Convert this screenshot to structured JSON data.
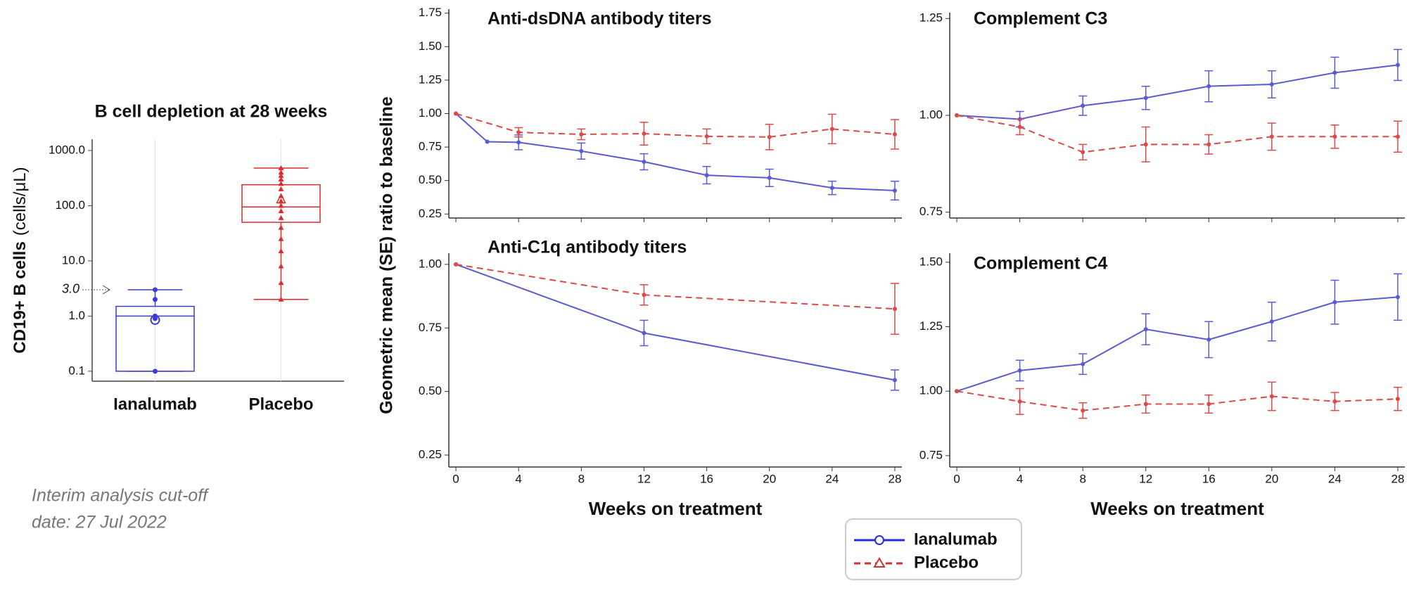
{
  "chart_data": [
    {
      "type": "box",
      "title": "B cell depletion at 28 weeks",
      "ylabel": "CD19+ B cells",
      "ylabel_unit": "(cells/μL)",
      "categories": [
        "Ianalumab",
        "Placebo"
      ],
      "colors": [
        "#3a3ad8",
        "#e02a2a"
      ],
      "yscale": "log",
      "grid": true,
      "ylim": [
        0.066,
        1600
      ],
      "yticks": [
        0.1,
        {
          "value": 1,
          "label": "1.0"
        },
        {
          "value": 10,
          "label": "10.0"
        },
        {
          "value": 100,
          "label": "100.0"
        },
        {
          "value": 1000,
          "label": "1000.0"
        }
      ],
      "boxes": [
        {
          "min": 0.1,
          "q1": 0.1,
          "median": 1.0,
          "q3": 1.5,
          "max": 3.0,
          "mean": 0.85,
          "points": [
            3.0,
            2.0,
            1.0,
            0.9,
            0.1
          ]
        },
        {
          "min": 2.0,
          "q1": 50,
          "median": 95,
          "q3": 240,
          "max": 480,
          "mean": 130,
          "points": [
            480,
            400,
            350,
            300,
            250,
            200,
            150,
            120,
            100,
            80,
            60,
            40,
            25,
            15,
            8,
            4,
            2
          ]
        }
      ],
      "annotation": {
        "label": "3.0",
        "value": 3.0
      }
    },
    {
      "type": "line",
      "title": "Anti-dsDNA antibody titers",
      "ylabel": "Geometric mean (SE) ratio to baseline",
      "xlim": [
        -0.45,
        28.45
      ],
      "xticks": [
        0,
        4,
        8,
        12,
        16,
        20,
        24,
        28
      ],
      "xticklabels": false,
      "ylim": [
        0.22,
        1.78
      ],
      "yticks": [
        0.25,
        {
          "value": 0.5,
          "label": "0.50"
        },
        0.75,
        {
          "value": 1,
          "label": "1.00"
        },
        1.25,
        {
          "value": 1.5,
          "label": "1.50"
        },
        1.75
      ],
      "series": [
        {
          "name": "Ianalumab",
          "color": "#5a5ad6",
          "legend_color": "#2a2ae0",
          "marker": "circle",
          "dash": false,
          "x": [
            0,
            2,
            4,
            8,
            12,
            16,
            20,
            24,
            28
          ],
          "values": [
            1.0,
            0.79,
            0.785,
            0.72,
            0.64,
            0.54,
            0.52,
            0.445,
            0.425
          ],
          "errors": [
            null,
            null,
            0.055,
            0.06,
            0.06,
            0.065,
            0.065,
            0.05,
            0.07
          ]
        },
        {
          "name": "Placebo",
          "color": "#e04848",
          "legend_color": "#d03030",
          "marker": "triangle",
          "dash": true,
          "x": [
            0,
            4,
            8,
            12,
            16,
            20,
            24,
            28
          ],
          "values": [
            1.0,
            0.86,
            0.845,
            0.85,
            0.83,
            0.825,
            0.885,
            0.845
          ],
          "errors": [
            null,
            0.035,
            0.04,
            0.085,
            0.055,
            0.095,
            0.11,
            0.11
          ]
        }
      ]
    },
    {
      "type": "line",
      "title": "Anti-C1q antibody titers",
      "xlabel": "Weeks on treatment",
      "xlim": [
        -0.45,
        28.45
      ],
      "xticks": [
        0,
        4,
        8,
        12,
        16,
        20,
        24,
        28
      ],
      "xticklabels": true,
      "ylim": [
        0.203,
        1.044
      ],
      "yticks": [
        0.25,
        {
          "value": 0.5,
          "label": "0.50"
        },
        0.75,
        {
          "value": 1,
          "label": "1.00"
        }
      ],
      "series": [
        {
          "color": "#5a5ad6",
          "dash": false,
          "x": [
            0,
            12,
            28
          ],
          "values": [
            1.0,
            0.73,
            0.545
          ],
          "errors": [
            null,
            0.05,
            0.04
          ]
        },
        {
          "color": "#e04848",
          "dash": true,
          "x": [
            0,
            12,
            28
          ],
          "values": [
            1.0,
            0.88,
            0.825
          ],
          "errors": [
            null,
            0.04,
            0.1
          ]
        }
      ]
    },
    {
      "type": "line",
      "title": "Complement C3",
      "xlim": [
        -0.45,
        28.45
      ],
      "xticks": [
        0,
        4,
        8,
        12,
        16,
        20,
        24,
        28
      ],
      "xticklabels": false,
      "ylim": [
        0.735,
        1.265
      ],
      "yticks": [
        0.75,
        {
          "value": 1,
          "label": "1.00"
        },
        1.25
      ],
      "series": [
        {
          "color": "#5a5ad6",
          "dash": false,
          "x": [
            0,
            4,
            8,
            12,
            16,
            20,
            24,
            28
          ],
          "values": [
            1.0,
            0.99,
            1.025,
            1.045,
            1.075,
            1.08,
            1.11,
            1.13
          ],
          "errors": [
            null,
            0.02,
            0.025,
            0.03,
            0.04,
            0.035,
            0.04,
            0.04
          ]
        },
        {
          "color": "#e04848",
          "dash": true,
          "x": [
            0,
            4,
            8,
            12,
            16,
            20,
            24,
            28
          ],
          "values": [
            1.0,
            0.97,
            0.905,
            0.925,
            0.925,
            0.945,
            0.945,
            0.945
          ],
          "errors": [
            null,
            0.02,
            0.02,
            0.045,
            0.025,
            0.035,
            0.03,
            0.04
          ]
        }
      ]
    },
    {
      "type": "line",
      "title": "Complement C4",
      "xlabel": "Weeks on treatment",
      "xlim": [
        -0.45,
        28.45
      ],
      "xticks": [
        0,
        4,
        8,
        12,
        16,
        20,
        24,
        28
      ],
      "xticklabels": true,
      "ylim": [
        0.706,
        1.535
      ],
      "yticks": [
        0.75,
        {
          "value": 1,
          "label": "1.00"
        },
        1.25,
        {
          "value": 1.5,
          "label": "1.50"
        }
      ],
      "series": [
        {
          "color": "#5a5ad6",
          "dash": false,
          "x": [
            0,
            4,
            8,
            12,
            16,
            20,
            24,
            28
          ],
          "values": [
            1.0,
            1.08,
            1.105,
            1.24,
            1.2,
            1.27,
            1.345,
            1.365
          ],
          "errors": [
            null,
            0.04,
            0.04,
            0.06,
            0.07,
            0.075,
            0.085,
            0.09
          ]
        },
        {
          "color": "#e04848",
          "dash": true,
          "x": [
            0,
            4,
            8,
            12,
            16,
            20,
            24,
            28
          ],
          "values": [
            1.0,
            0.96,
            0.925,
            0.95,
            0.95,
            0.98,
            0.96,
            0.97
          ],
          "errors": [
            null,
            0.05,
            0.03,
            0.035,
            0.035,
            0.055,
            0.035,
            0.045
          ]
        }
      ]
    }
  ],
  "note": [
    "Interim analysis cut-off",
    "date: 27 Jul 2022"
  ]
}
